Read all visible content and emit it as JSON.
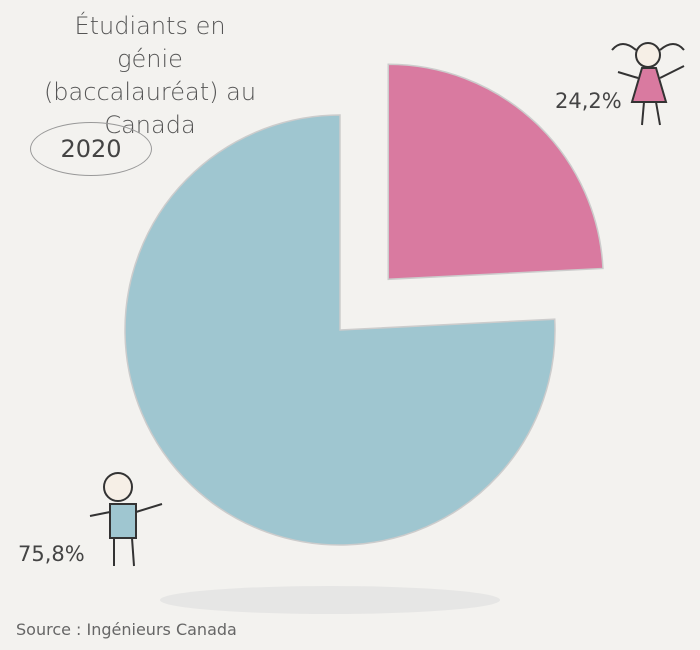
{
  "chart_data": {
    "type": "pie",
    "title": "Étudiants en génie (baccalauréat) au Canada",
    "subtitle": "2020",
    "values": [
      24.2,
      75.8
    ],
    "value_labels": [
      "24,2%",
      "75,8%"
    ],
    "colors": [
      "#d97aa0",
      "#9fc6d0"
    ],
    "source": "Source : Ingénieurs Canada"
  }
}
